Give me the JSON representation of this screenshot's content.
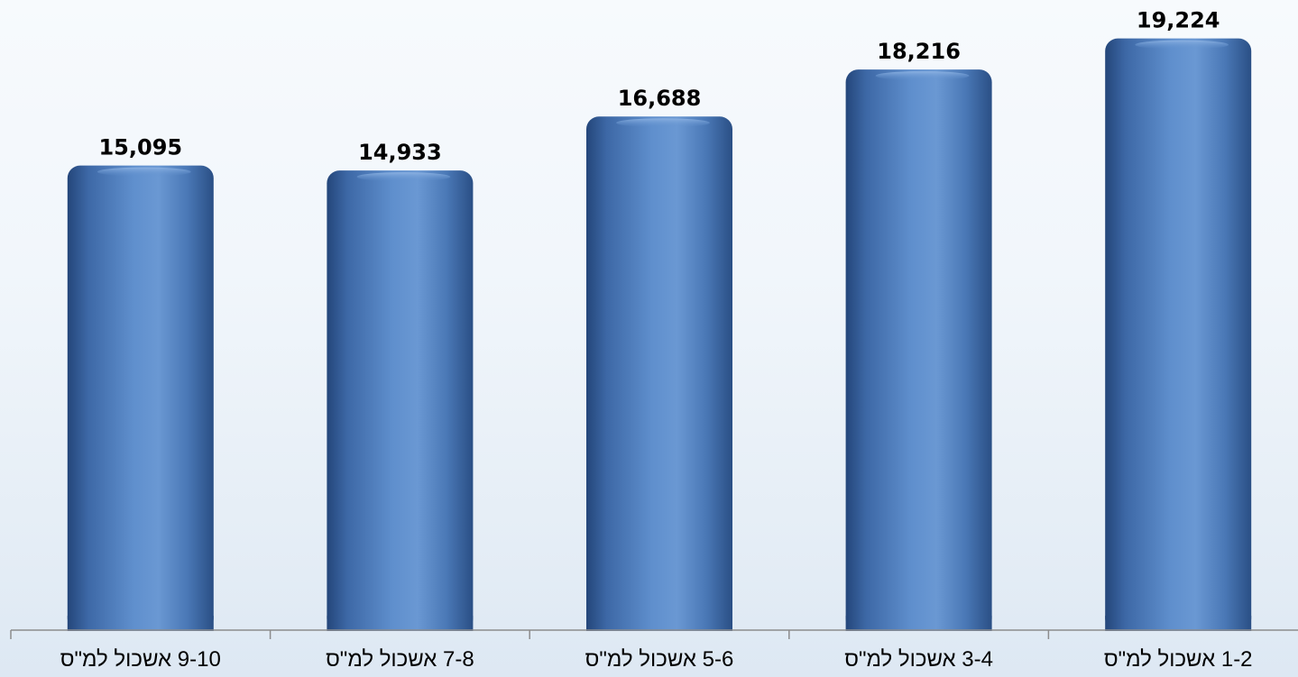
{
  "chart_data": {
    "type": "bar",
    "categories": [
      "9-10 אשכול למ\"ס",
      "7-8 אשכול למ\"ס",
      "5-6 אשכול למ\"ס",
      "3-4 אשכול למ\"ס",
      "1-2 אשכול למ\"ס"
    ],
    "values": [
      15095,
      14933,
      16688,
      18216,
      19224
    ],
    "value_labels": [
      "15,095",
      "14,933",
      "16,688",
      "18,216",
      "19,224"
    ],
    "title": "",
    "xlabel": "",
    "ylabel": "",
    "ylim": [
      0,
      19800
    ],
    "grid": false,
    "legend": "none",
    "colors": {
      "bar_dark": "#2a4f85",
      "bar_mid": "#4f7fbe",
      "bar_light": "#6d9ad4",
      "axis": "#8c8c8c"
    }
  }
}
